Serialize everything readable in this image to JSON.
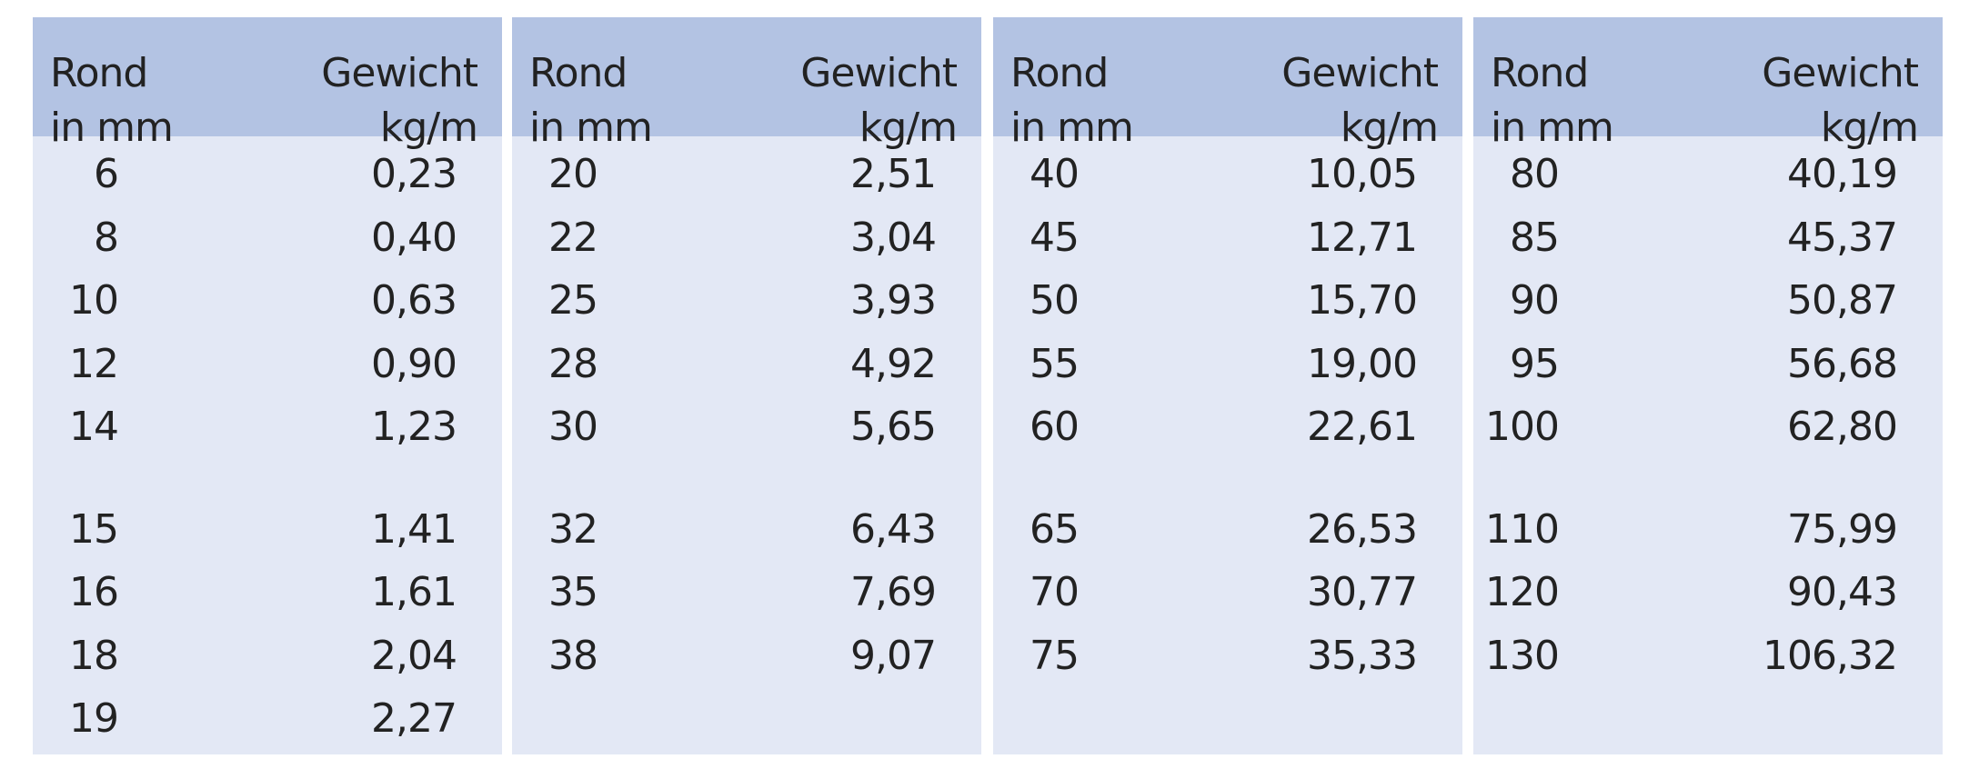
{
  "panels": [
    {
      "header": {
        "col1": [
          "Rond",
          "in mm"
        ],
        "col2": [
          "Gewicht",
          "kg/m"
        ]
      },
      "groups": [
        [
          [
            "6",
            "0,23"
          ],
          [
            "8",
            "0,40"
          ],
          [
            "10",
            "0,63"
          ],
          [
            "12",
            "0,90"
          ],
          [
            "14",
            "1,23"
          ]
        ],
        [
          [
            "15",
            "1,41"
          ],
          [
            "16",
            "1,61"
          ],
          [
            "18",
            "2,04"
          ],
          [
            "19",
            "2,27"
          ]
        ]
      ]
    },
    {
      "header": {
        "col1": [
          "Rond",
          "in mm"
        ],
        "col2": [
          "Gewicht",
          "kg/m"
        ]
      },
      "groups": [
        [
          [
            "20",
            "2,51"
          ],
          [
            "22",
            "3,04"
          ],
          [
            "25",
            "3,93"
          ],
          [
            "28",
            "4,92"
          ],
          [
            "30",
            "5,65"
          ]
        ],
        [
          [
            "32",
            "6,43"
          ],
          [
            "35",
            "7,69"
          ],
          [
            "38",
            "9,07"
          ]
        ]
      ]
    },
    {
      "header": {
        "col1": [
          "Rond",
          "in mm"
        ],
        "col2": [
          "Gewicht",
          "kg/m"
        ]
      },
      "groups": [
        [
          [
            "40",
            "10,05"
          ],
          [
            "45",
            "12,71"
          ],
          [
            "50",
            "15,70"
          ],
          [
            "55",
            "19,00"
          ],
          [
            "60",
            "22,61"
          ]
        ],
        [
          [
            "65",
            "26,53"
          ],
          [
            "70",
            "30,77"
          ],
          [
            "75",
            "35,33"
          ]
        ]
      ]
    },
    {
      "header": {
        "col1": [
          "Rond",
          "in mm"
        ],
        "col2": [
          "Gewicht",
          "kg/m"
        ]
      },
      "groups": [
        [
          [
            "80",
            "40,19"
          ],
          [
            "85",
            "45,37"
          ],
          [
            "90",
            "50,87"
          ],
          [
            "95",
            "56,68"
          ],
          [
            "100",
            "62,80"
          ]
        ],
        [
          [
            "110",
            "75,99"
          ],
          [
            "120",
            "90,43"
          ],
          [
            "130",
            "106,32"
          ]
        ]
      ]
    }
  ]
}
